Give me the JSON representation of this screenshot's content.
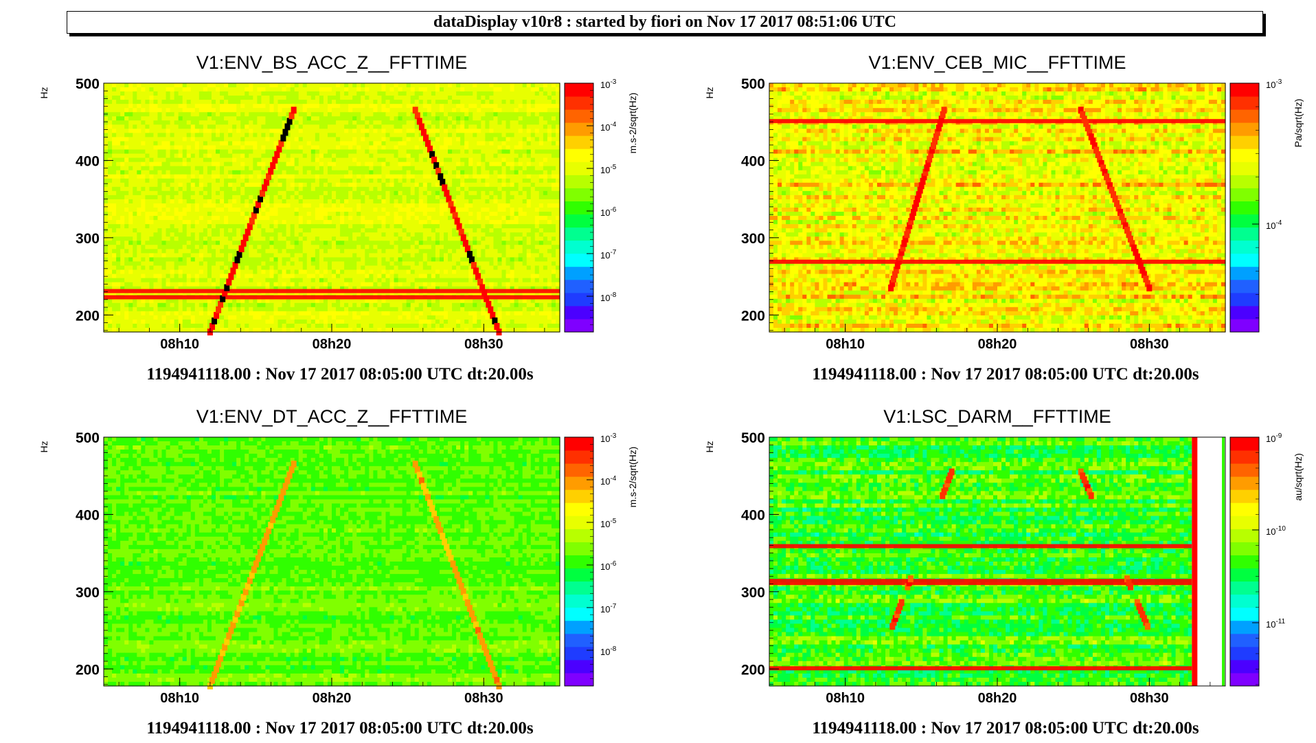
{
  "banner": "dataDisplay v10r8 : started by fiori on Nov 17 2017 08:51:06 UTC",
  "chart_data": [
    {
      "type": "heatmap",
      "title": "V1:ENV_BS_ACC_Z__FFTTIME",
      "ylabel": "Hz",
      "yticks": [
        "200",
        "300",
        "400",
        "500"
      ],
      "ylim": [
        178,
        500
      ],
      "xlim_minutes": [
        5,
        35
      ],
      "xticks": [
        "08h10",
        "08h20",
        "08h30"
      ],
      "colorbar_unit": "m.s-2/sqrt(Hz)",
      "colorbar_ticks": [
        {
          "base": "10",
          "exp": "-3"
        },
        {
          "base": "10",
          "exp": "-4"
        },
        {
          "base": "10",
          "exp": "-5"
        },
        {
          "base": "10",
          "exp": "-6"
        },
        {
          "base": "10",
          "exp": "-7"
        },
        {
          "base": "10",
          "exp": "-8"
        }
      ],
      "footer": "1194941118.00 : Nov 17 2017 08:05:00 UTC dt:20.00s",
      "palette": "bs",
      "lines_hz": [
        230,
        222
      ],
      "chirp": {
        "up": [
          [
            12,
            178
          ],
          [
            17.5,
            465
          ]
        ],
        "down": [
          [
            25.5,
            465
          ],
          [
            31,
            178
          ]
        ]
      }
    },
    {
      "type": "heatmap",
      "title": "V1:ENV_CEB_MIC__FFTTIME",
      "ylabel": "Hz",
      "yticks": [
        "200",
        "300",
        "400",
        "500"
      ],
      "ylim": [
        178,
        500
      ],
      "xlim_minutes": [
        5,
        35
      ],
      "xticks": [
        "08h10",
        "08h20",
        "08h30"
      ],
      "colorbar_unit": "Pa/sqrt(Hz)",
      "colorbar_ticks": [
        {
          "base": "10",
          "exp": "-3"
        },
        {
          "base": "10",
          "exp": "-4"
        }
      ],
      "footer": "1194941118.00 : Nov 17 2017 08:05:00 UTC dt:20.00s",
      "palette": "mic",
      "lines_hz": [
        268,
        450
      ],
      "chirp": {
        "up": [
          [
            13,
            235
          ],
          [
            16.5,
            465
          ]
        ],
        "down": [
          [
            25.5,
            465
          ],
          [
            30,
            235
          ]
        ]
      }
    },
    {
      "type": "heatmap",
      "title": "V1:ENV_DT_ACC_Z__FFTTIME",
      "ylabel": "Hz",
      "yticks": [
        "200",
        "300",
        "400",
        "500"
      ],
      "ylim": [
        178,
        500
      ],
      "xlim_minutes": [
        5,
        35
      ],
      "xticks": [
        "08h10",
        "08h20",
        "08h30"
      ],
      "colorbar_unit": "m.s-2/sqrt(Hz)",
      "colorbar_ticks": [
        {
          "base": "10",
          "exp": "-3"
        },
        {
          "base": "10",
          "exp": "-4"
        },
        {
          "base": "10",
          "exp": "-5"
        },
        {
          "base": "10",
          "exp": "-6"
        },
        {
          "base": "10",
          "exp": "-7"
        },
        {
          "base": "10",
          "exp": "-8"
        }
      ],
      "footer": "1194941118.00 : Nov 17 2017 08:05:00 UTC dt:20.00s",
      "palette": "dt",
      "lines_hz": [],
      "chirp": {
        "up": [
          [
            12,
            178
          ],
          [
            17.5,
            465
          ]
        ],
        "down": [
          [
            25.5,
            465
          ],
          [
            31,
            178
          ]
        ]
      }
    },
    {
      "type": "heatmap",
      "title": "V1:LSC_DARM__FFTTIME",
      "ylabel": "Hz",
      "yticks": [
        "200",
        "300",
        "400",
        "500"
      ],
      "ylim": [
        178,
        500
      ],
      "xlim_minutes": [
        5,
        35
      ],
      "xticks": [
        "08h10",
        "08h20",
        "08h30"
      ],
      "colorbar_unit": "au/sqrt(Hz)",
      "colorbar_ticks": [
        {
          "base": "10",
          "exp": "-9"
        },
        {
          "base": "10",
          "exp": "-10"
        },
        {
          "base": "10",
          "exp": "-11"
        }
      ],
      "footer": "1194941118.00 : Nov 17 2017 08:05:00 UTC dt:20.00s",
      "palette": "darm",
      "lines_hz": [
        313,
        358,
        200
      ],
      "data_end_minute": 32.8,
      "chirp": {
        "up": [
          [
            13,
            250
          ],
          [
            17,
            455
          ]
        ],
        "down": [
          [
            25.5,
            455
          ],
          [
            30,
            250
          ]
        ]
      }
    }
  ]
}
